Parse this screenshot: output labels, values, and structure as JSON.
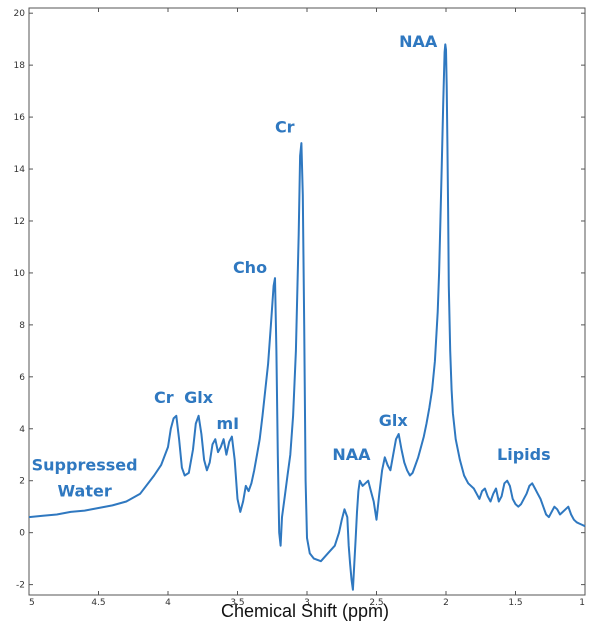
{
  "chart_data": {
    "type": "line",
    "title": "",
    "xlabel": "Chemical Shift (ppm)",
    "ylabel": "",
    "xlim": [
      5,
      1
    ],
    "ylim": [
      -2.4,
      20.2
    ],
    "x_reversed": true,
    "grid": false,
    "line_color": "#2f78c0",
    "x_ticks": [
      {
        "value": 5,
        "label": "5"
      },
      {
        "value": 4.5,
        "label": "4.5"
      },
      {
        "value": 4,
        "label": "4"
      },
      {
        "value": 3.5,
        "label": "3.5"
      },
      {
        "value": 3,
        "label": "3"
      },
      {
        "value": 2.5,
        "label": "2.5"
      },
      {
        "value": 2,
        "label": "2"
      },
      {
        "value": 1.5,
        "label": "1.5"
      },
      {
        "value": 1,
        "label": "1"
      }
    ],
    "y_ticks": [
      {
        "value": -2,
        "label": "-2"
      },
      {
        "value": 0,
        "label": "0"
      },
      {
        "value": 2,
        "label": "2"
      },
      {
        "value": 4,
        "label": "4"
      },
      {
        "value": 6,
        "label": "6"
      },
      {
        "value": 8,
        "label": "8"
      },
      {
        "value": 10,
        "label": "10"
      },
      {
        "value": 12,
        "label": "12"
      },
      {
        "value": 14,
        "label": "14"
      },
      {
        "value": 16,
        "label": "16"
      },
      {
        "value": 18,
        "label": "18"
      },
      {
        "value": 20,
        "label": "20"
      }
    ],
    "annotations": [
      {
        "text": "Suppressed",
        "x": 4.6,
        "y": 2.4
      },
      {
        "text": "Water",
        "x": 4.6,
        "y": 1.4
      },
      {
        "text": "Cr",
        "x": 4.03,
        "y": 5.0
      },
      {
        "text": "Glx",
        "x": 3.78,
        "y": 5.0
      },
      {
        "text": "mI",
        "x": 3.57,
        "y": 4.0
      },
      {
        "text": "Cho",
        "x": 3.41,
        "y": 10.0
      },
      {
        "text": "Cr",
        "x": 3.16,
        "y": 15.4
      },
      {
        "text": "NAA",
        "x": 2.68,
        "y": 2.8
      },
      {
        "text": "Glx",
        "x": 2.38,
        "y": 4.1
      },
      {
        "text": "NAA",
        "x": 2.2,
        "y": 18.7
      },
      {
        "text": "Lipids",
        "x": 1.44,
        "y": 2.8
      }
    ],
    "series": [
      {
        "x": [
          5.0,
          4.9,
          4.8,
          4.7,
          4.6,
          4.5,
          4.4,
          4.3,
          4.2,
          4.1,
          4.05,
          4.0,
          3.98,
          3.96,
          3.94,
          3.92,
          3.9,
          3.88,
          3.85,
          3.82,
          3.8,
          3.78,
          3.76,
          3.74,
          3.72,
          3.7,
          3.68,
          3.66,
          3.64,
          3.62,
          3.6,
          3.58,
          3.56,
          3.54,
          3.52,
          3.5,
          3.48,
          3.46,
          3.44,
          3.42,
          3.4,
          3.38,
          3.36,
          3.34,
          3.32,
          3.3,
          3.28,
          3.26,
          3.24,
          3.23,
          3.22,
          3.21,
          3.2,
          3.19,
          3.18,
          3.16,
          3.14,
          3.12,
          3.1,
          3.08,
          3.06,
          3.05,
          3.04,
          3.03,
          3.02,
          3.01,
          3.0,
          2.98,
          2.95,
          2.9,
          2.85,
          2.8,
          2.77,
          2.75,
          2.73,
          2.71,
          2.7,
          2.69,
          2.68,
          2.67,
          2.66,
          2.65,
          2.64,
          2.63,
          2.62,
          2.6,
          2.58,
          2.56,
          2.54,
          2.52,
          2.5,
          2.48,
          2.46,
          2.44,
          2.42,
          2.4,
          2.38,
          2.36,
          2.34,
          2.32,
          2.3,
          2.28,
          2.26,
          2.24,
          2.22,
          2.2,
          2.18,
          2.16,
          2.14,
          2.12,
          2.1,
          2.08,
          2.06,
          2.05,
          2.04,
          2.03,
          2.02,
          2.015,
          2.01,
          2.005,
          2.0,
          1.995,
          1.99,
          1.985,
          1.98,
          1.97,
          1.96,
          1.95,
          1.93,
          1.9,
          1.87,
          1.84,
          1.8,
          1.78,
          1.76,
          1.74,
          1.72,
          1.7,
          1.68,
          1.66,
          1.64,
          1.62,
          1.6,
          1.58,
          1.56,
          1.54,
          1.52,
          1.5,
          1.48,
          1.46,
          1.44,
          1.42,
          1.4,
          1.38,
          1.36,
          1.34,
          1.32,
          1.3,
          1.28,
          1.26,
          1.24,
          1.22,
          1.2,
          1.18,
          1.16,
          1.14,
          1.12,
          1.1,
          1.08,
          1.06,
          1.04,
          1.02,
          1.0
        ],
        "y": [
          0.6,
          0.65,
          0.7,
          0.8,
          0.85,
          0.95,
          1.05,
          1.2,
          1.5,
          2.2,
          2.6,
          3.3,
          4.0,
          4.4,
          4.5,
          3.6,
          2.5,
          2.2,
          2.3,
          3.2,
          4.2,
          4.5,
          3.8,
          2.8,
          2.4,
          2.7,
          3.4,
          3.6,
          3.1,
          3.3,
          3.6,
          3.0,
          3.5,
          3.7,
          2.8,
          1.3,
          0.8,
          1.2,
          1.8,
          1.6,
          1.9,
          2.4,
          3.0,
          3.6,
          4.5,
          5.5,
          6.5,
          8.0,
          9.5,
          9.8,
          7.0,
          3.0,
          0.0,
          -0.5,
          0.6,
          1.4,
          2.2,
          3.0,
          4.5,
          7.0,
          11.5,
          14.5,
          15.0,
          13.0,
          8.0,
          2.0,
          -0.2,
          -0.8,
          -1.0,
          -1.1,
          -0.8,
          -0.5,
          0.0,
          0.5,
          0.9,
          0.6,
          -0.5,
          -1.2,
          -1.8,
          -2.2,
          -1.2,
          -0.2,
          0.8,
          1.6,
          2.0,
          1.8,
          1.9,
          2.0,
          1.6,
          1.2,
          0.5,
          1.5,
          2.4,
          2.9,
          2.6,
          2.4,
          3.0,
          3.6,
          3.8,
          3.2,
          2.7,
          2.4,
          2.2,
          2.3,
          2.6,
          2.9,
          3.3,
          3.7,
          4.2,
          4.8,
          5.5,
          6.6,
          8.5,
          10.0,
          12.0,
          14.2,
          16.5,
          17.5,
          18.5,
          18.8,
          18.6,
          17.2,
          15.0,
          12.5,
          9.5,
          7.0,
          5.5,
          4.6,
          3.6,
          2.8,
          2.2,
          1.9,
          1.7,
          1.5,
          1.3,
          1.6,
          1.7,
          1.4,
          1.2,
          1.5,
          1.7,
          1.2,
          1.4,
          1.9,
          2.0,
          1.8,
          1.3,
          1.1,
          1.0,
          1.1,
          1.3,
          1.5,
          1.8,
          1.9,
          1.7,
          1.5,
          1.3,
          1.0,
          0.7,
          0.6,
          0.8,
          1.0,
          0.9,
          0.7,
          0.8,
          0.9,
          1.0,
          0.7,
          0.5,
          0.4,
          0.35,
          0.3,
          0.25
        ]
      }
    ]
  }
}
